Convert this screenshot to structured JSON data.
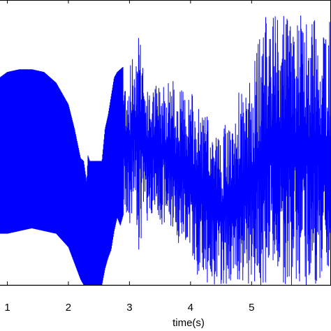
{
  "chart_data": {
    "type": "line",
    "xlabel": "time(s)",
    "ylabel": "",
    "title": "",
    "xlim": [
      0.88,
      6.3
    ],
    "ylim": [
      0,
      1
    ],
    "x_ticks": [
      {
        "value": 1,
        "label": "1"
      },
      {
        "value": 2,
        "label": "2"
      },
      {
        "value": 3,
        "label": "3"
      },
      {
        "value": 4,
        "label": "4"
      },
      {
        "value": 5,
        "label": "5"
      }
    ],
    "grid": false,
    "legend": "none",
    "colors": {
      "series": "#0000ff",
      "axes": "#000000",
      "background": "#ffffff"
    },
    "series": [
      {
        "x": [
          0.88,
          1.0,
          1.2,
          1.4,
          1.6,
          1.8,
          2.0,
          2.1,
          2.2,
          2.25,
          2.3,
          2.32,
          2.35,
          2.45,
          2.5,
          2.55,
          2.6,
          2.65,
          2.7,
          2.75,
          2.8,
          2.85,
          2.9,
          2.95,
          3.0,
          3.05,
          3.1,
          3.15,
          3.2,
          3.25,
          3.3,
          3.4,
          3.5,
          3.6,
          3.7,
          3.8,
          3.9,
          4.0,
          4.1,
          4.2,
          4.3,
          4.4,
          4.5,
          4.6,
          4.7,
          4.8,
          4.9,
          5.0,
          5.2,
          5.4,
          5.6,
          5.8,
          6.0,
          6.3
        ],
        "high": [
          0.77,
          0.79,
          0.8,
          0.8,
          0.79,
          0.75,
          0.67,
          0.58,
          0.47,
          0.46,
          0.38,
          0.48,
          0.46,
          0.46,
          0.46,
          0.46,
          0.58,
          0.63,
          0.7,
          0.77,
          0.79,
          0.8,
          0.81,
          0.8,
          0.81,
          0.86,
          0.89,
          1.0,
          1.0,
          0.78,
          0.72,
          0.74,
          0.76,
          0.78,
          0.77,
          0.73,
          0.73,
          0.73,
          0.66,
          0.66,
          0.62,
          0.6,
          0.55,
          0.62,
          0.56,
          0.74,
          0.7,
          0.78,
          1.0,
          1.0,
          1.0,
          1.0,
          1.0,
          1.0
        ],
        "low": [
          0.19,
          0.19,
          0.2,
          0.21,
          0.2,
          0.19,
          0.14,
          0.08,
          0.02,
          0.0,
          0.0,
          0.0,
          0.0,
          0.0,
          0.0,
          0.0,
          0.06,
          0.1,
          0.13,
          0.2,
          0.25,
          0.22,
          0.26,
          0.22,
          0.2,
          0.24,
          0.28,
          0.13,
          0.15,
          0.2,
          0.24,
          0.27,
          0.23,
          0.21,
          0.2,
          0.15,
          0.14,
          0.12,
          0.04,
          0.02,
          0.0,
          0.0,
          0.0,
          0.0,
          0.0,
          0.0,
          0.0,
          0.0,
          0.0,
          0.0,
          0.0,
          0.0,
          0.0,
          0.0
        ]
      }
    ]
  }
}
